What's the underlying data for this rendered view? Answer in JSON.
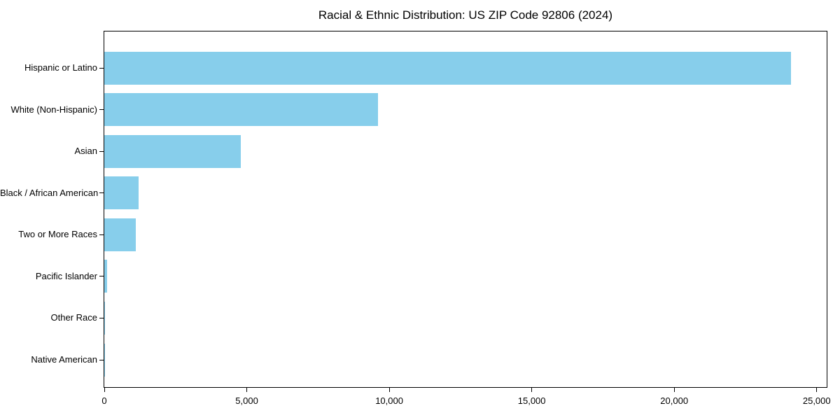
{
  "chart_data": {
    "type": "bar",
    "orientation": "horizontal",
    "title": "Racial & Ethnic Distribution: US ZIP Code 92806 (2024)",
    "categories": [
      "Hispanic or Latino",
      "White (Non-Hispanic)",
      "Asian",
      "Black / African American",
      "Two or More Races",
      "Pacific Islander",
      "Other Race",
      "Native American"
    ],
    "values": [
      24100,
      9600,
      4800,
      1200,
      1100,
      100,
      30,
      10
    ],
    "xlabel": "",
    "ylabel": "",
    "xlim": [
      0,
      25350
    ],
    "x_ticks": [
      {
        "value": 0,
        "label": "0"
      },
      {
        "value": 5000,
        "label": "5,000"
      },
      {
        "value": 10000,
        "label": "10,000"
      },
      {
        "value": 15000,
        "label": "15,000"
      },
      {
        "value": 20000,
        "label": "20,000"
      },
      {
        "value": 25000,
        "label": "25,000"
      }
    ],
    "bar_color": "#87CEEB",
    "axis_color": "#000000",
    "text_color": "#000000",
    "background": "#FFFFFF",
    "grid": false,
    "legend": null
  }
}
